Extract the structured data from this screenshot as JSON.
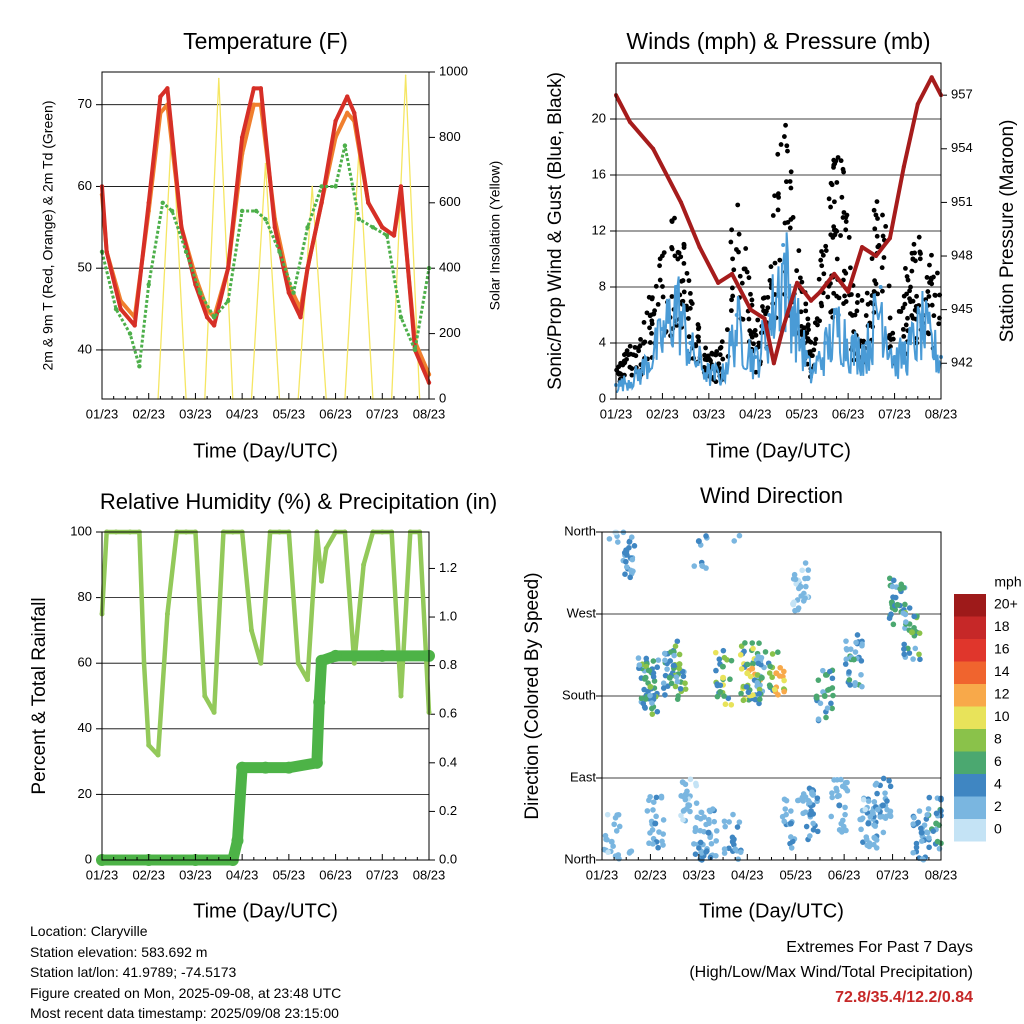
{
  "colors": {
    "temp_red": "#d62f27",
    "temp_orange": "#f07f2e",
    "dewpoint_green": "#4daf4a",
    "solar_yellow": "#f5e663",
    "gust_black": "#000000",
    "wind_blue": "#4a9bd6",
    "pressure_maroon": "#a61c1c",
    "rh_green": "#93c95a",
    "precip_green": "#4db347",
    "extremes_red": "#c62828"
  },
  "panels": {
    "temperature": {
      "title": "Temperature (F)",
      "ylabel_left": "2m & 9m T (Red, Orange) & 2m Td (Green)",
      "ylabel_right": "Solar Insolation (Yellow)",
      "xlabel": "Time (Day/UTC)"
    },
    "winds": {
      "title": "Winds (mph) & Pressure (mb)",
      "ylabel_left": "Sonic/Prop Wind & Gust (Blue, Black)",
      "ylabel_right": "Station Pressure (Maroon)",
      "xlabel": "Time (Day/UTC)"
    },
    "humidity": {
      "title": "Relative Humidity (%) & Precipitation (in)",
      "ylabel_left": "Percent & Total Rainfall",
      "xlabel": "Time (Day/UTC)"
    },
    "wind_direction": {
      "title": "Wind Direction",
      "ylabel_left": "Direction (Colored By Speed)",
      "xlabel": "Time (Day/UTC)",
      "legend_title": "mph",
      "legend_labels": [
        "20+",
        "18",
        "16",
        "14",
        "12",
        "10",
        "8",
        "6",
        "4",
        "2",
        "0"
      ],
      "legend_colors": [
        "#9e1a1a",
        "#c62828",
        "#e0362c",
        "#f0642e",
        "#f8a94a",
        "#e8e35a",
        "#8ac24a",
        "#4ba870",
        "#3f86c2",
        "#7ab6e0",
        "#c4e3f5"
      ]
    }
  },
  "info": {
    "location": "Location: Claryville",
    "elevation": "Station elevation: 583.692 m",
    "latlon": "Station lat/lon: 41.9789; -74.5173",
    "created": "Figure created on Mon, 2025-09-08, at 23:48 UTC",
    "recent": "Most recent data timestamp: 2025/09/08 23:15:00"
  },
  "extremes": {
    "title": "Extremes For Past 7 Days",
    "subtitle": "(High/Low/Max Wind/Total Precipitation)",
    "values": "72.8/35.4/12.2/0.84"
  },
  "chart_data": [
    {
      "type": "line",
      "title": "Temperature (F)",
      "xlabel": "Time (Day/UTC)",
      "ylabel": "2m & 9m T (Red, Orange) & 2m Td (Green)",
      "y2label": "Solar Insolation (Yellow)",
      "x_tick_labels": [
        "01/23",
        "02/23",
        "03/23",
        "04/23",
        "05/23",
        "06/23",
        "07/23",
        "08/23"
      ],
      "ylim": [
        34,
        74
      ],
      "yticks": [
        40,
        50,
        60,
        70
      ],
      "y2lim": [
        0,
        1000
      ],
      "y2ticks": [
        0,
        200,
        400,
        600,
        800,
        1000
      ],
      "series": [
        {
          "name": "2m T",
          "axis": "left",
          "x": [
            0,
            0.1,
            0.4,
            0.7,
            1.0,
            1.25,
            1.4,
            1.7,
            2.0,
            2.25,
            2.4,
            2.7,
            3.0,
            3.25,
            3.4,
            3.7,
            4.0,
            4.25,
            4.4,
            4.7,
            5.0,
            5.25,
            5.4,
            5.7,
            6.0,
            6.25,
            6.4,
            6.7,
            7.0
          ],
          "y": [
            60,
            52,
            45,
            43,
            58,
            71,
            72,
            55,
            48,
            44,
            43,
            50,
            66,
            72,
            72,
            55,
            47,
            44,
            50,
            58,
            68,
            71,
            69,
            58,
            55,
            54,
            60,
            40,
            36
          ]
        },
        {
          "name": "9m T",
          "axis": "left",
          "x": [
            0,
            0.1,
            0.4,
            0.7,
            1.0,
            1.25,
            1.4,
            1.7,
            2.0,
            2.25,
            2.4,
            2.7,
            3.0,
            3.25,
            3.4,
            3.7,
            4.0,
            4.25,
            4.4,
            4.7,
            5.0,
            5.25,
            5.4,
            5.7,
            6.0,
            6.25,
            6.4,
            6.7,
            7.0
          ],
          "y": [
            59,
            52,
            46,
            44,
            57,
            69,
            70,
            55,
            49,
            45,
            44,
            50,
            64,
            70,
            70,
            56,
            48,
            45,
            50,
            58,
            66,
            69,
            68,
            58,
            55,
            54,
            59,
            41,
            37
          ]
        },
        {
          "name": "2m Td",
          "axis": "left",
          "x": [
            0,
            0.3,
            0.6,
            0.8,
            1.0,
            1.3,
            1.5,
            1.8,
            2.1,
            2.4,
            2.7,
            3.0,
            3.3,
            3.5,
            3.8,
            4.1,
            4.4,
            4.7,
            5.0,
            5.2,
            5.5,
            5.8,
            6.1,
            6.4,
            6.7,
            7.0
          ],
          "y": [
            52,
            45,
            42,
            38,
            48,
            58,
            57,
            52,
            47,
            44,
            46,
            57,
            57,
            56,
            52,
            47,
            55,
            60,
            60,
            65,
            56,
            55,
            54,
            44,
            40,
            50
          ]
        },
        {
          "name": "Solar Insolation",
          "axis": "right",
          "x": [
            1.2,
            1.5,
            1.8,
            2.2,
            2.5,
            2.8,
            3.2,
            3.5,
            3.8,
            4.2,
            4.5,
            4.8,
            5.2,
            5.5,
            5.8,
            6.2,
            6.5,
            6.8
          ],
          "y": [
            0,
            850,
            0,
            0,
            980,
            0,
            0,
            720,
            0,
            0,
            650,
            0,
            0,
            760,
            0,
            0,
            990,
            0
          ]
        }
      ]
    },
    {
      "type": "scatter",
      "title": "Winds (mph) & Pressure (mb)",
      "xlabel": "Time (Day/UTC)",
      "ylabel": "Sonic/Prop Wind & Gust (Blue, Black)",
      "y2label": "Station Pressure (Maroon)",
      "x_tick_labels": [
        "01/23",
        "02/23",
        "03/23",
        "04/23",
        "05/23",
        "06/23",
        "07/23",
        "08/23"
      ],
      "ylim": [
        0,
        24
      ],
      "yticks": [
        0,
        4,
        8,
        12,
        16,
        20
      ],
      "y2lim": [
        940,
        958.8
      ],
      "y2ticks": [
        942,
        945,
        948,
        951,
        954,
        957
      ],
      "series": [
        {
          "name": "Wind",
          "x": [
            0,
            0.5,
            1.0,
            1.3,
            1.6,
            2.0,
            2.3,
            2.6,
            3.0,
            3.3,
            3.6,
            3.9,
            4.2,
            4.5,
            4.8,
            5.1,
            5.4,
            5.7,
            6.0,
            6.3,
            6.6,
            7.0
          ],
          "y": [
            1,
            2,
            5,
            8,
            4,
            2,
            2,
            6,
            3,
            6,
            11,
            6,
            2,
            4,
            6,
            4,
            4,
            8,
            3,
            4,
            6,
            3
          ]
        },
        {
          "name": "Gust",
          "x": [
            0,
            0.5,
            1.0,
            1.3,
            1.6,
            2.0,
            2.3,
            2.6,
            3.0,
            3.3,
            3.6,
            3.9,
            4.2,
            4.5,
            4.8,
            5.1,
            5.4,
            5.7,
            6.0,
            6.3,
            6.6,
            7.0
          ],
          "y": [
            3,
            4,
            11,
            14,
            8,
            3,
            4,
            16,
            5,
            10,
            21,
            12,
            4,
            12,
            20,
            8,
            7,
            18,
            5,
            10,
            12,
            8
          ]
        },
        {
          "name": "Station Pressure",
          "x": [
            0,
            0.3,
            0.8,
            1.4,
            1.8,
            2.2,
            2.5,
            2.9,
            3.2,
            3.4,
            3.6,
            3.9,
            4.2,
            4.4,
            4.7,
            5.0,
            5.3,
            5.6,
            5.9,
            6.2,
            6.5,
            6.8,
            7.0
          ],
          "y": [
            957,
            955.5,
            954,
            951,
            948.5,
            946.5,
            947,
            945,
            944.5,
            942,
            944,
            946.5,
            945.5,
            946,
            947,
            946,
            948.5,
            948,
            949,
            953,
            956.5,
            958,
            957
          ]
        }
      ]
    },
    {
      "type": "line",
      "title": "Relative Humidity (%) & Precipitation (in)",
      "xlabel": "Time (Day/UTC)",
      "ylabel": "Percent & Total Rainfall",
      "x_tick_labels": [
        "01/23",
        "02/23",
        "03/23",
        "04/23",
        "05/23",
        "06/23",
        "07/23",
        "08/23"
      ],
      "ylim": [
        0,
        100
      ],
      "yticks": [
        0,
        20,
        40,
        60,
        80,
        100
      ],
      "y2lim": [
        0,
        1.35
      ],
      "y2ticks": [
        0.0,
        0.2,
        0.4,
        0.6,
        0.8,
        1.0,
        1.2
      ],
      "series": [
        {
          "name": "Relative Humidity",
          "axis": "left",
          "x": [
            0,
            0.1,
            0.3,
            0.6,
            0.8,
            0.9,
            1.0,
            1.2,
            1.4,
            1.6,
            1.8,
            2.0,
            2.2,
            2.4,
            2.6,
            2.8,
            3.0,
            3.2,
            3.4,
            3.6,
            3.8,
            4.0,
            4.2,
            4.4,
            4.6,
            4.7,
            4.8,
            5.0,
            5.2,
            5.4,
            5.6,
            5.8,
            6.0,
            6.2,
            6.4,
            6.6,
            6.8,
            7.0
          ],
          "y": [
            75,
            100,
            100,
            100,
            100,
            60,
            35,
            32,
            75,
            100,
            100,
            100,
            50,
            45,
            100,
            100,
            100,
            70,
            60,
            100,
            100,
            100,
            60,
            55,
            100,
            85,
            95,
            100,
            100,
            60,
            90,
            100,
            100,
            100,
            50,
            100,
            100,
            45
          ]
        },
        {
          "name": "Total Precipitation",
          "axis": "right",
          "x": [
            0,
            1.0,
            2.0,
            2.8,
            2.9,
            3.0,
            3.5,
            4.0,
            4.6,
            4.65,
            4.7,
            5.0,
            6.0,
            7.0
          ],
          "y": [
            0,
            0,
            0,
            0,
            0.08,
            0.38,
            0.38,
            0.38,
            0.4,
            0.65,
            0.82,
            0.84,
            0.84,
            0.84
          ]
        }
      ]
    },
    {
      "type": "scatter",
      "title": "Wind Direction",
      "xlabel": "Time (Day/UTC)",
      "ylabel": "Direction (Colored By Speed)",
      "x_tick_labels": [
        "01/23",
        "02/23",
        "03/23",
        "04/23",
        "05/23",
        "06/23",
        "07/23",
        "08/23"
      ],
      "y_tick_labels": [
        "North",
        "East",
        "South",
        "West",
        "North"
      ],
      "color_scale_label": "mph",
      "series": [
        {
          "name": "Wind Direction",
          "x": [
            0.2,
            0.5,
            0.9,
            1.0,
            1.1,
            1.4,
            1.6,
            1.8,
            2.0,
            2.2,
            2.5,
            2.7,
            3.0,
            3.1,
            3.3,
            3.6,
            3.9,
            4.1,
            4.3,
            4.6,
            4.9,
            5.2,
            5.5,
            5.8,
            6.1,
            6.4,
            6.6,
            6.9
          ],
          "direction_deg": [
            20,
            340,
            200,
            190,
            40,
            200,
            215,
            60,
            350,
            30,
            200,
            20,
            205,
            210,
            200,
            205,
            40,
            300,
            50,
            180,
            60,
            220,
            40,
            60,
            280,
            250,
            30,
            40
          ],
          "speed": [
            2,
            4,
            6,
            8,
            3,
            6,
            8,
            2,
            4,
            3,
            10,
            4,
            10,
            12,
            6,
            12,
            3,
            2,
            4,
            6,
            3,
            5,
            3,
            4,
            6,
            8,
            4,
            6
          ]
        }
      ]
    }
  ]
}
